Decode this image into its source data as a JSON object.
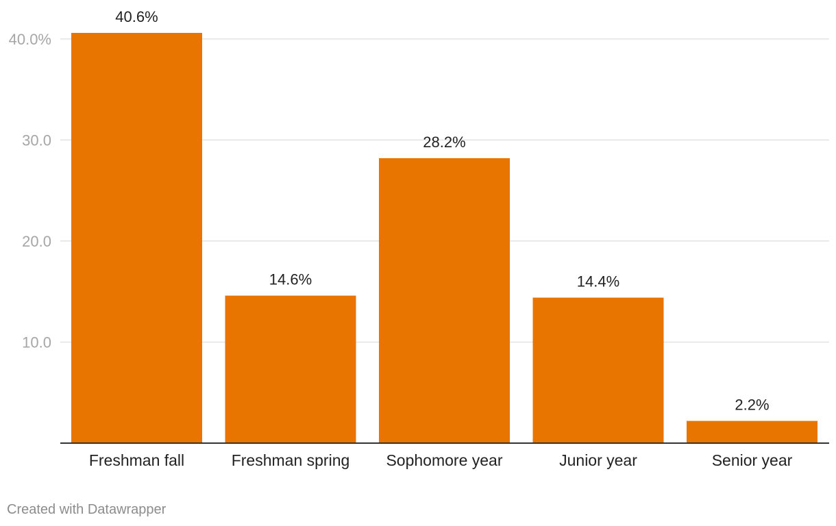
{
  "chart_data": {
    "type": "bar",
    "categories": [
      "Freshman fall",
      "Freshman spring",
      "Sophomore year",
      "Junior year",
      "Senior year"
    ],
    "values": [
      40.6,
      14.6,
      28.2,
      14.4,
      2.2
    ],
    "data_labels": [
      "40.6%",
      "14.6%",
      "28.2%",
      "14.4%",
      "2.2%"
    ],
    "y_ticks": [
      {
        "value": 10,
        "label": "10.0"
      },
      {
        "value": 20,
        "label": "20.0"
      },
      {
        "value": 30,
        "label": "30.0"
      },
      {
        "value": 40,
        "label": "40.0%"
      }
    ],
    "ylim": [
      0,
      40.6
    ],
    "grid": true,
    "bar_color": "#e87500",
    "title": "",
    "xlabel": "",
    "ylabel": ""
  },
  "footer": {
    "credit": "Created with Datawrapper"
  }
}
